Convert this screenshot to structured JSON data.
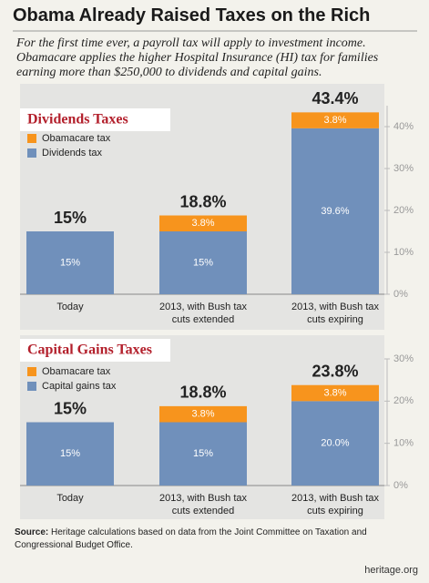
{
  "title": "Obama Already Raised Taxes on the Rich",
  "subtitle": "For the first time ever, a payroll tax will apply to investment income.\nObamacare applies the higher Hospital Insurance (HI) tax for families\nearning more than $250,000 to dividends and capital gains.",
  "source_label": "Source:",
  "source": "Heritage calculations based on data from the Joint Committee on Taxation and Congressional Budget Office.",
  "logo": "heritage.org",
  "chart_data": [
    {
      "type": "bar",
      "stacked": true,
      "title": "Dividends Taxes",
      "categories": [
        "Today",
        "2013, with Bush tax\ncuts extended",
        "2013, with Bush tax\ncuts expiring"
      ],
      "series": [
        {
          "name": "Obamacare tax",
          "color": "#f7941d",
          "values": [
            null,
            3.8,
            3.8
          ],
          "value_labels": [
            null,
            "3.8%",
            "3.8%"
          ]
        },
        {
          "name": "Dividends tax",
          "color": "#7090bb",
          "values": [
            15,
            15,
            39.6
          ],
          "value_labels": [
            "15%",
            "15%",
            "39.6%"
          ]
        }
      ],
      "totals": [
        15,
        18.8,
        43.4
      ],
      "total_labels": [
        "15%",
        "18.8%",
        "43.4%"
      ],
      "ylim": [
        0,
        45
      ],
      "yticks": [
        {
          "value": 0,
          "label": "0%"
        },
        {
          "value": 10,
          "label": "10%"
        },
        {
          "value": 20,
          "label": "20%"
        },
        {
          "value": 30,
          "label": "30%"
        },
        {
          "value": 40,
          "label": "40%"
        }
      ]
    },
    {
      "type": "bar",
      "stacked": true,
      "title": "Capital Gains Taxes",
      "categories": [
        "Today",
        "2013, with Bush tax\ncuts extended",
        "2013, with Bush tax\ncuts expiring"
      ],
      "series": [
        {
          "name": "Obamacare tax",
          "color": "#f7941d",
          "values": [
            null,
            3.8,
            3.8
          ],
          "value_labels": [
            null,
            "3.8%",
            "3.8%"
          ]
        },
        {
          "name": "Capital gains tax",
          "color": "#7090bb",
          "values": [
            15,
            15,
            20.0
          ],
          "value_labels": [
            "15%",
            "15%",
            "20.0%"
          ]
        }
      ],
      "totals": [
        15,
        18.8,
        23.8
      ],
      "total_labels": [
        "15%",
        "18.8%",
        "23.8%"
      ],
      "ylim": [
        0,
        30
      ],
      "yticks": [
        {
          "value": 0,
          "label": "0%"
        },
        {
          "value": 10,
          "label": "10%"
        },
        {
          "value": 20,
          "label": "20%"
        },
        {
          "value": 30,
          "label": "30%"
        }
      ]
    }
  ]
}
